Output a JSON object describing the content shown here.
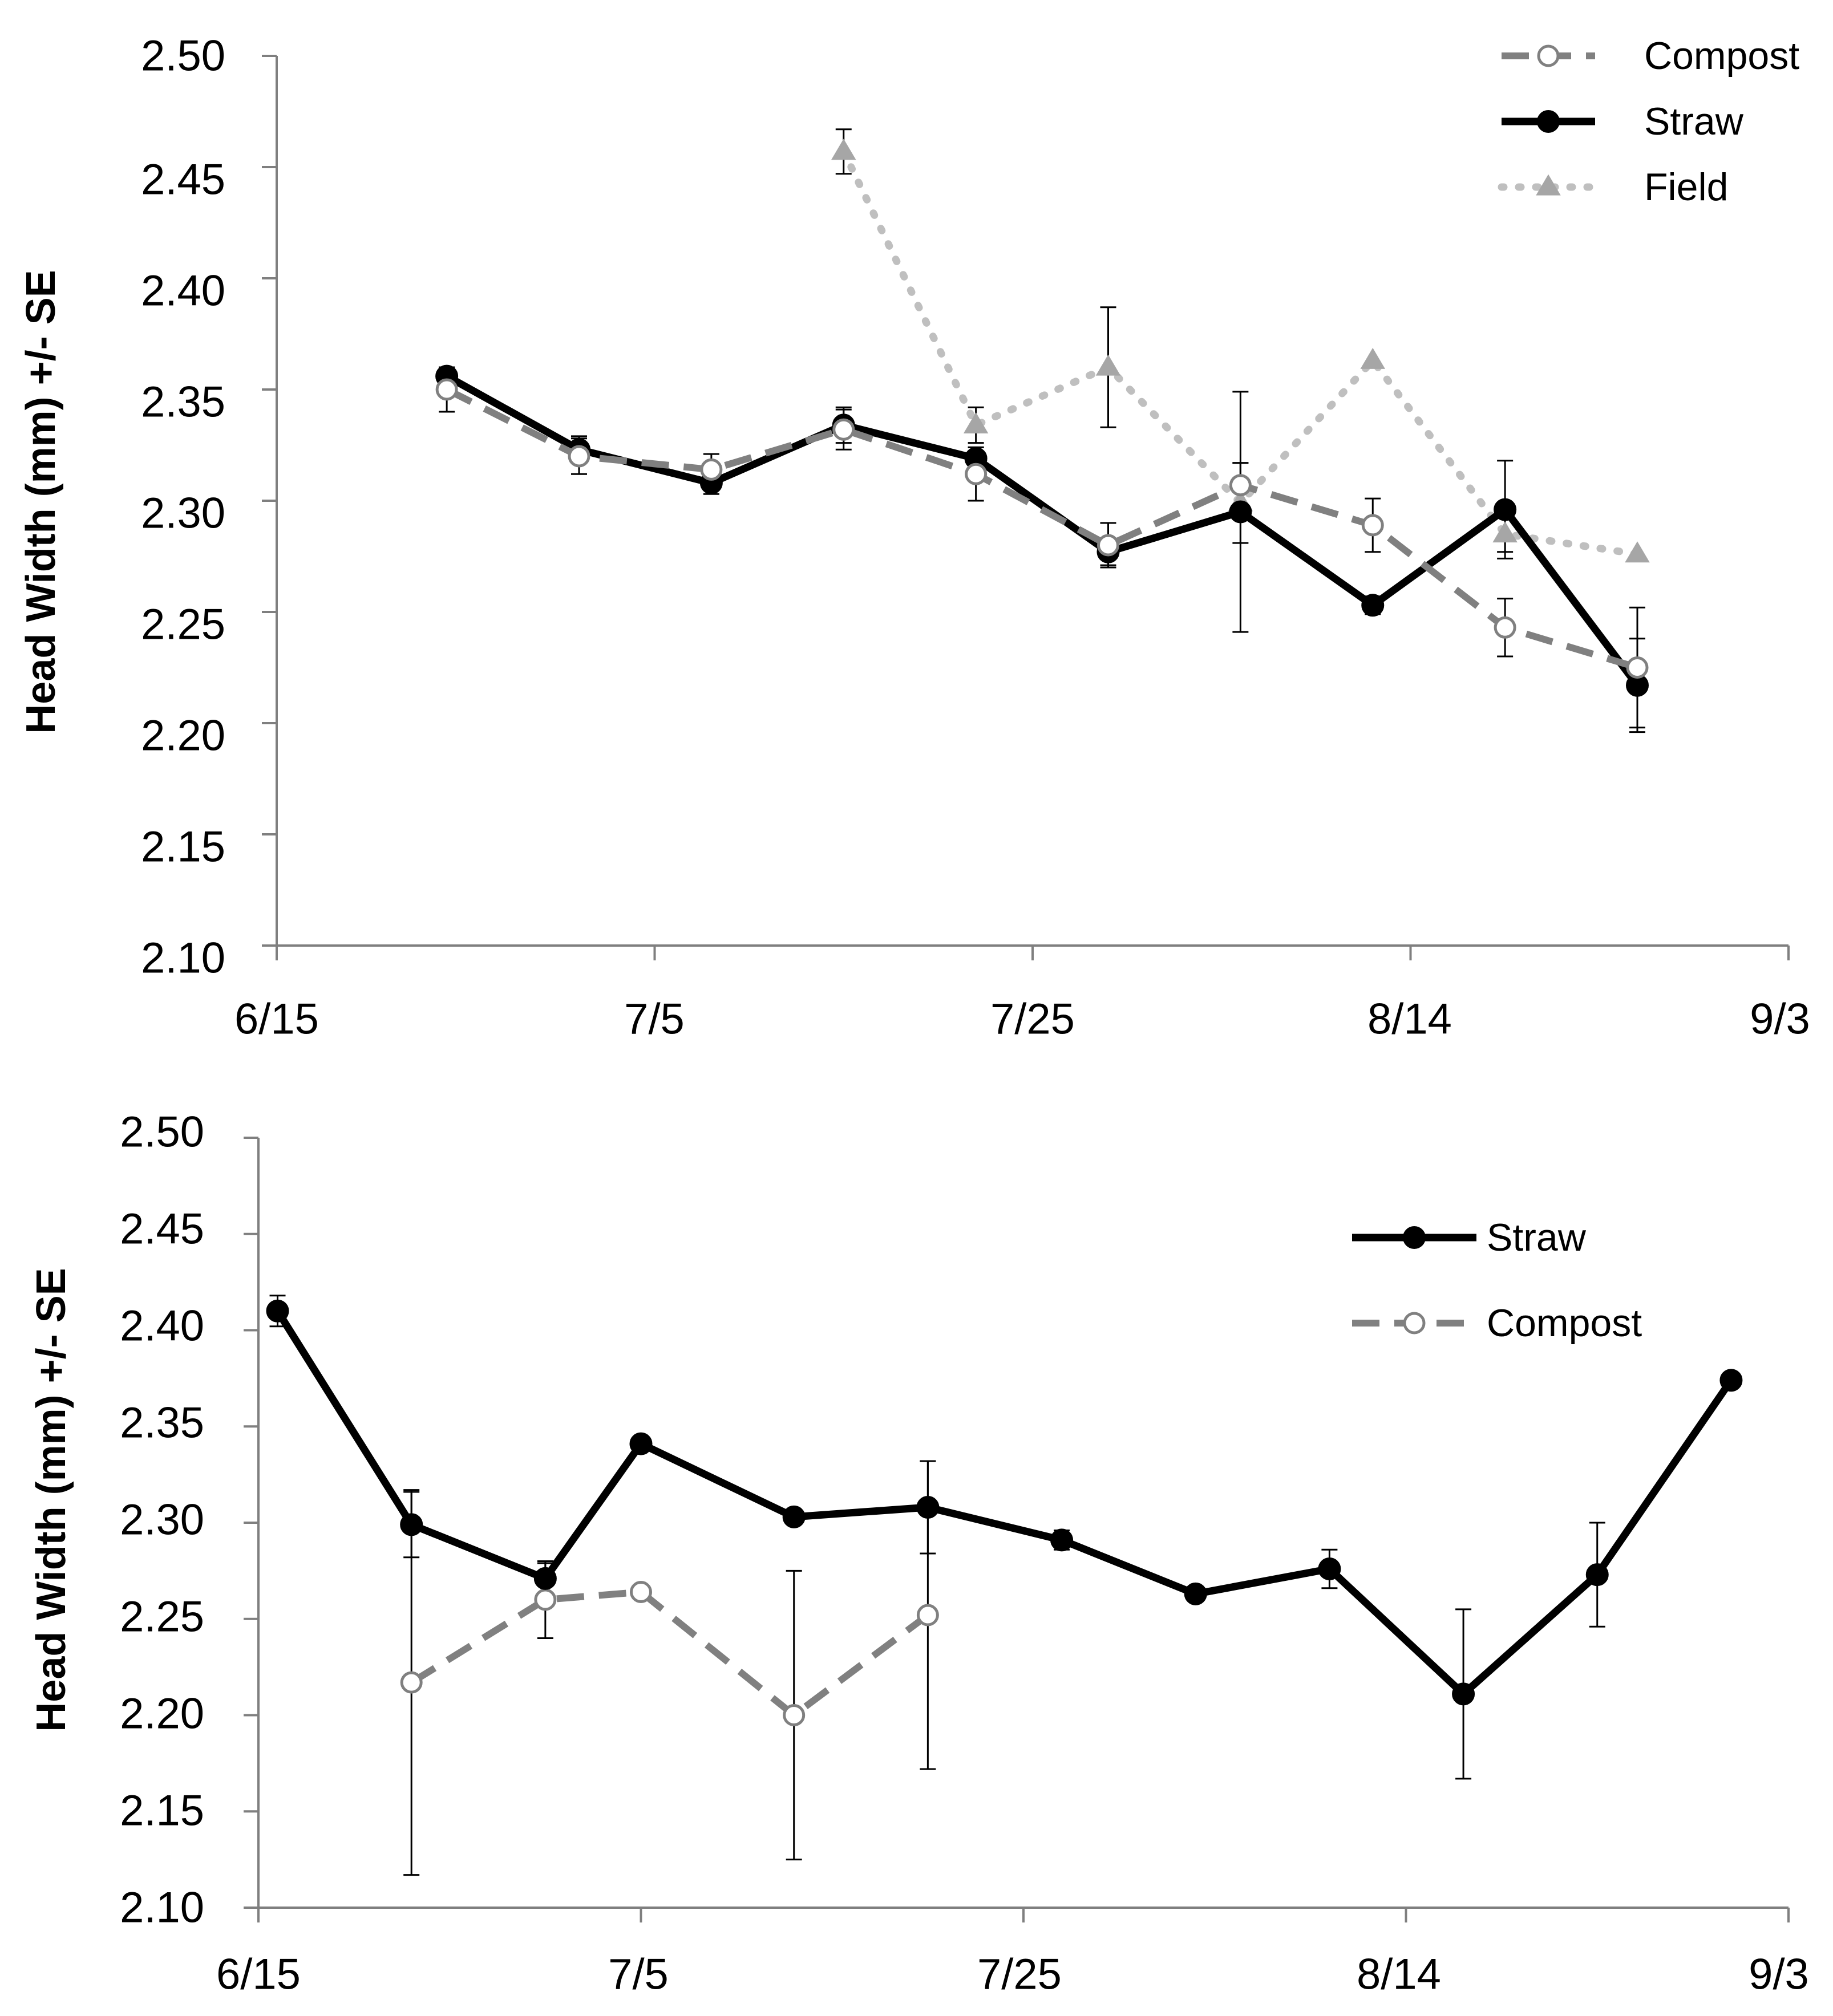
{
  "chart_data": [
    {
      "type": "line",
      "title": "",
      "xlabel": "",
      "ylabel": "Head Width (mm) +/- SE",
      "x_tick_labels": [
        "6/15",
        "7/5",
        "7/25",
        "8/14",
        "9/3"
      ],
      "y_tick_labels": [
        "2.10",
        "2.15",
        "2.20",
        "2.25",
        "2.30",
        "2.35",
        "2.40",
        "2.45",
        "2.50"
      ],
      "xlim": [
        "06-15",
        "09-03"
      ],
      "ylim": [
        2.1,
        2.5
      ],
      "grid": false,
      "legend_position": "top-right",
      "legend_order": [
        "Compost",
        "Straw",
        "Field"
      ],
      "series": [
        {
          "name": "Compost",
          "color": "#808080",
          "line_style": "dashed",
          "marker": "open-circle",
          "x": [
            "06-24",
            "07-01",
            "07-08",
            "07-15",
            "07-22",
            "07-29",
            "08-05",
            "08-12",
            "08-19",
            "08-26"
          ],
          "y": [
            2.35,
            2.32,
            2.314,
            2.332,
            2.312,
            2.28,
            2.307,
            2.289,
            2.243,
            2.225
          ],
          "error": [
            0.01,
            0.008,
            0.007,
            0.009,
            0.012,
            0.01,
            0.01,
            0.012,
            0.013,
            0.027
          ]
        },
        {
          "name": "Straw",
          "color": "#000000",
          "line_style": "solid",
          "marker": "filled-circle",
          "x": [
            "06-24",
            "07-01",
            "07-08",
            "07-15",
            "07-22",
            "07-29",
            "08-05",
            "08-12",
            "08-19",
            "08-26"
          ],
          "y": [
            2.356,
            2.323,
            2.308,
            2.334,
            2.319,
            2.277,
            2.295,
            2.253,
            2.296,
            2.217
          ],
          "error": [
            0.004,
            0.006,
            0.005,
            0.008,
            0.005,
            0.006,
            0.054,
            0.004,
            0.022,
            0.021
          ]
        },
        {
          "name": "Field",
          "color": "#bfbfbf",
          "marker_color": "#a6a6a6",
          "line_style": "dotted",
          "marker": "triangle",
          "x": [
            "07-15",
            "07-22",
            "07-29",
            "08-05",
            "08-12",
            "08-19",
            "08-26"
          ],
          "y": [
            2.457,
            2.334,
            2.36,
            2.299,
            2.363,
            2.285,
            2.276
          ],
          "error": [
            0.01,
            0.008,
            0.027,
            0.018,
            0.0,
            0.008,
            0.0
          ]
        }
      ]
    },
    {
      "type": "line",
      "title": "",
      "xlabel": "",
      "ylabel": "Head Width (mm) +/- SE",
      "x_tick_labels": [
        "6/15",
        "7/5",
        "7/25",
        "8/14",
        "9/3"
      ],
      "y_tick_labels": [
        "2.10",
        "2.15",
        "2.20",
        "2.25",
        "2.30",
        "2.35",
        "2.40",
        "2.45",
        "2.50"
      ],
      "xlim": [
        "06-15",
        "09-03"
      ],
      "ylim": [
        2.1,
        2.5
      ],
      "grid": false,
      "legend_position": "top-right",
      "legend_order": [
        "Straw",
        "Compost"
      ],
      "series": [
        {
          "name": "Straw",
          "color": "#000000",
          "line_style": "solid",
          "marker": "filled-circle",
          "x": [
            "06-16",
            "06-23",
            "06-30",
            "07-05",
            "07-13",
            "07-20",
            "07-27",
            "08-03",
            "08-10",
            "08-17",
            "08-24",
            "08-31"
          ],
          "y": [
            2.41,
            2.299,
            2.271,
            2.341,
            2.303,
            2.308,
            2.291,
            2.263,
            2.276,
            2.211,
            2.273,
            2.374
          ],
          "error": [
            0.008,
            0.017,
            0.008,
            0.0,
            0.0,
            0.024,
            0.005,
            0.0,
            0.01,
            0.044,
            0.027,
            0.0
          ]
        },
        {
          "name": "Compost",
          "color": "#808080",
          "line_style": "dashed",
          "marker": "open-circle",
          "x": [
            "06-23",
            "06-30",
            "07-05",
            "07-13",
            "07-20"
          ],
          "y": [
            2.217,
            2.26,
            2.264,
            2.2,
            2.252
          ],
          "error": [
            0.1,
            0.02,
            0.0,
            0.075,
            0.08
          ]
        }
      ]
    }
  ]
}
